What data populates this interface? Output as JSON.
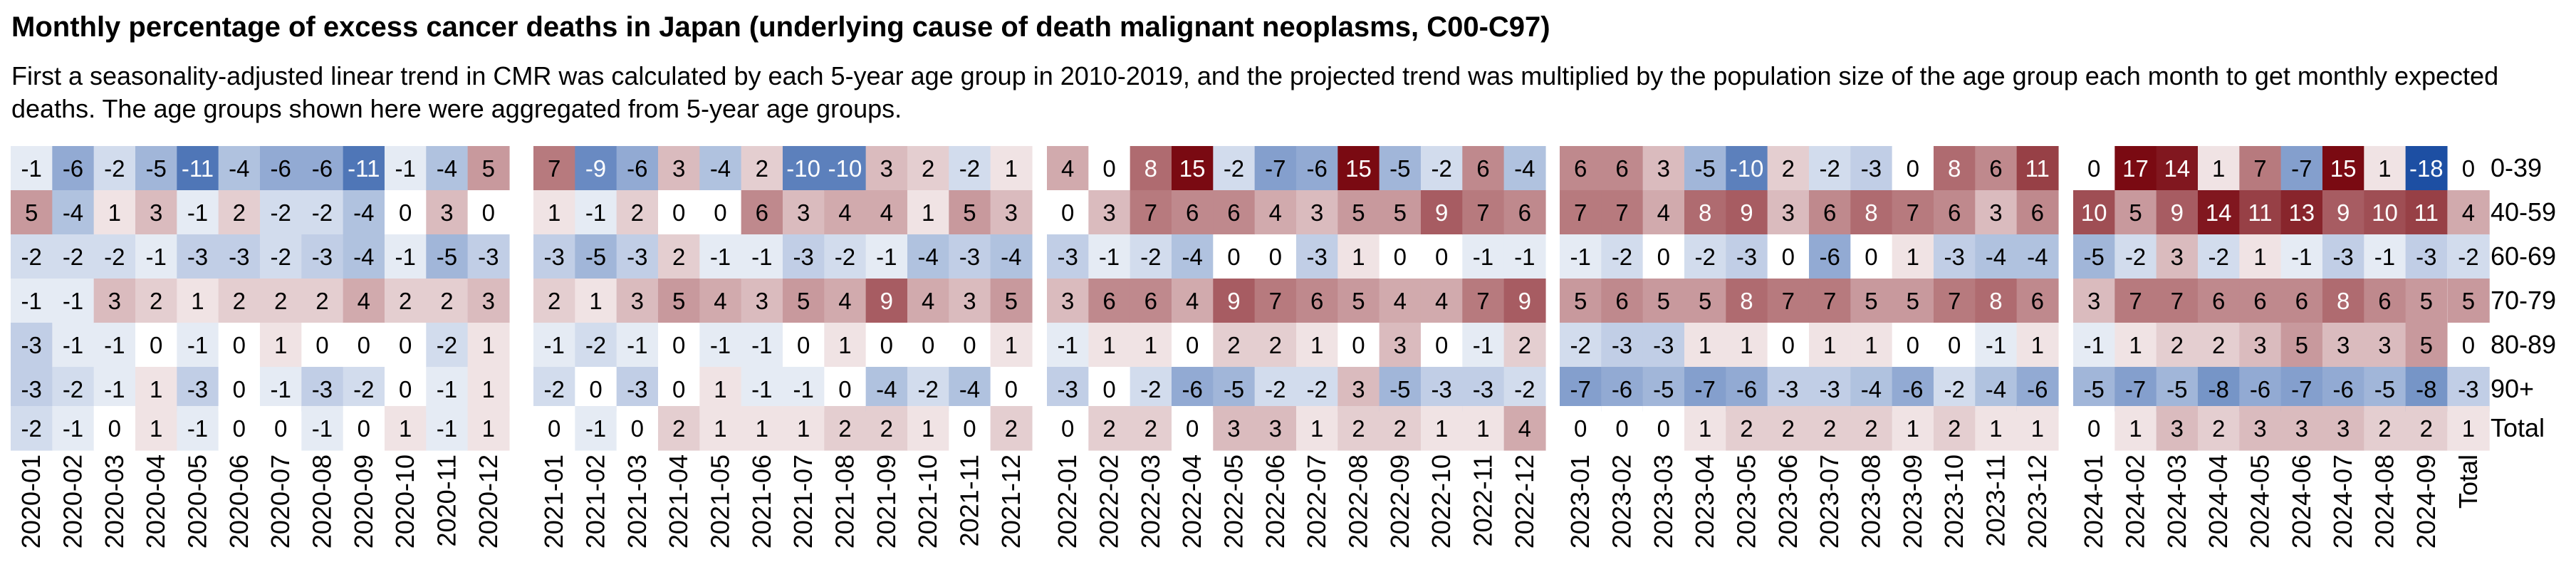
{
  "chart_data": {
    "type": "heatmap",
    "title": "Monthly percentage of excess cancer deaths in Japan (underlying cause of death malignant neoplasms, C00-C97)",
    "subtitle": "First a seasonality-adjusted linear trend in CMR was calculated by each 5-year age group in 2010-2019, and the projected trend was multiplied by the population size of the age group each month to get monthly expected deaths. The age groups shown here were aggregated from 5-year age groups.",
    "color_scale": {
      "negative": "#1d4fa3",
      "zero": "#ffffff",
      "positive": "#7a0a12",
      "max_abs": 15
    },
    "rows": [
      "0-39",
      "40-59",
      "60-69",
      "70-79",
      "80-89",
      "90+"
    ],
    "total_row_label": "Total",
    "total_col_label": "Total",
    "years": [
      {
        "months": [
          "2020-01",
          "2020-02",
          "2020-03",
          "2020-04",
          "2020-05",
          "2020-06",
          "2020-07",
          "2020-08",
          "2020-09",
          "2020-10",
          "2020-11",
          "2020-12"
        ],
        "values": [
          [
            -1,
            -6,
            -2,
            -5,
            -11,
            -4,
            -6,
            -6,
            -11,
            -1,
            -4,
            5
          ],
          [
            5,
            -4,
            1,
            3,
            -1,
            2,
            -2,
            -2,
            -4,
            0,
            3,
            0
          ],
          [
            -2,
            -2,
            -2,
            -1,
            -3,
            -3,
            -2,
            -3,
            -4,
            -1,
            -5,
            -3
          ],
          [
            -1,
            -1,
            3,
            2,
            1,
            2,
            2,
            2,
            4,
            2,
            2,
            3
          ],
          [
            -3,
            -1,
            -1,
            0,
            -1,
            0,
            1,
            0,
            0,
            0,
            -2,
            1
          ],
          [
            -3,
            -2,
            -1,
            1,
            -3,
            0,
            -1,
            -3,
            -2,
            0,
            -1,
            1
          ]
        ],
        "totals": [
          -2,
          -1,
          0,
          1,
          -1,
          0,
          0,
          -1,
          0,
          1,
          -1,
          1
        ]
      },
      {
        "months": [
          "2021-01",
          "2021-02",
          "2021-03",
          "2021-04",
          "2021-05",
          "2021-06",
          "2021-07",
          "2021-08",
          "2021-09",
          "2021-10",
          "2021-11",
          "2021-12"
        ],
        "values": [
          [
            7,
            -9,
            -6,
            3,
            -4,
            2,
            -10,
            -10,
            3,
            2,
            -2,
            1
          ],
          [
            1,
            -1,
            2,
            0,
            0,
            6,
            3,
            4,
            4,
            1,
            5,
            3
          ],
          [
            -3,
            -5,
            -3,
            2,
            -1,
            -1,
            -3,
            -2,
            -1,
            -4,
            -3,
            -4
          ],
          [
            2,
            1,
            3,
            5,
            4,
            3,
            5,
            4,
            9,
            4,
            3,
            5
          ],
          [
            -1,
            -2,
            -1,
            0,
            -1,
            -1,
            0,
            1,
            0,
            0,
            0,
            1
          ],
          [
            -2,
            0,
            -3,
            0,
            1,
            -1,
            -1,
            0,
            -4,
            -2,
            -4,
            0
          ]
        ],
        "totals": [
          0,
          -1,
          0,
          2,
          1,
          1,
          1,
          2,
          2,
          1,
          0,
          2
        ]
      },
      {
        "months": [
          "2022-01",
          "2022-02",
          "2022-03",
          "2022-04",
          "2022-05",
          "2022-06",
          "2022-07",
          "2022-08",
          "2022-09",
          "2022-10",
          "2022-11",
          "2022-12"
        ],
        "values": [
          [
            4,
            0,
            8,
            15,
            -2,
            -7,
            -6,
            15,
            -5,
            -2,
            6,
            -4
          ],
          [
            0,
            3,
            7,
            6,
            6,
            4,
            3,
            5,
            5,
            9,
            7,
            6
          ],
          [
            -3,
            -1,
            -2,
            -4,
            0,
            0,
            -3,
            1,
            0,
            0,
            -1,
            -1
          ],
          [
            3,
            6,
            6,
            4,
            9,
            7,
            6,
            5,
            4,
            4,
            7,
            9
          ],
          [
            -1,
            1,
            1,
            0,
            2,
            2,
            1,
            0,
            3,
            0,
            -1,
            2
          ],
          [
            -3,
            0,
            -2,
            -6,
            -5,
            -2,
            -2,
            3,
            -5,
            -3,
            -3,
            -2
          ]
        ],
        "totals": [
          0,
          2,
          2,
          0,
          3,
          3,
          1,
          2,
          2,
          1,
          1,
          4
        ]
      },
      {
        "months": [
          "2023-01",
          "2023-02",
          "2023-03",
          "2023-04",
          "2023-05",
          "2023-06",
          "2023-07",
          "2023-08",
          "2023-09",
          "2023-10",
          "2023-11",
          "2023-12"
        ],
        "values": [
          [
            6,
            6,
            3,
            -5,
            -10,
            2,
            -2,
            -3,
            0,
            8,
            6,
            11
          ],
          [
            7,
            7,
            4,
            8,
            9,
            3,
            6,
            8,
            7,
            6,
            3,
            6
          ],
          [
            -1,
            -2,
            0,
            -2,
            -3,
            0,
            -6,
            0,
            1,
            -3,
            -4,
            -4
          ],
          [
            5,
            6,
            5,
            5,
            8,
            7,
            7,
            5,
            5,
            7,
            8,
            6
          ],
          [
            -2,
            -3,
            -3,
            1,
            1,
            0,
            1,
            1,
            0,
            0,
            -1,
            1
          ],
          [
            -7,
            -6,
            -5,
            -7,
            -6,
            -3,
            -3,
            -4,
            -6,
            -2,
            -4,
            -6
          ]
        ],
        "totals": [
          0,
          0,
          0,
          1,
          2,
          2,
          2,
          2,
          1,
          2,
          1,
          1
        ]
      },
      {
        "months": [
          "2024-01",
          "2024-02",
          "2024-03",
          "2024-04",
          "2024-05",
          "2024-06",
          "2024-07",
          "2024-08",
          "2024-09"
        ],
        "values": [
          [
            0,
            17,
            14,
            1,
            7,
            -7,
            15,
            1,
            -18
          ],
          [
            10,
            5,
            9,
            14,
            11,
            13,
            9,
            10,
            11
          ],
          [
            -5,
            -2,
            3,
            -2,
            1,
            -1,
            -3,
            -1,
            -3
          ],
          [
            3,
            7,
            7,
            6,
            6,
            6,
            8,
            6,
            5
          ],
          [
            -1,
            1,
            2,
            2,
            3,
            5,
            3,
            3,
            5
          ],
          [
            -5,
            -7,
            -5,
            -8,
            -6,
            -7,
            -6,
            -5,
            -8
          ]
        ],
        "totals": [
          0,
          1,
          3,
          2,
          3,
          3,
          3,
          2,
          2
        ]
      }
    ],
    "row_totals": [
      0,
      4,
      -2,
      5,
      0,
      -3
    ],
    "grand_total": 1
  }
}
